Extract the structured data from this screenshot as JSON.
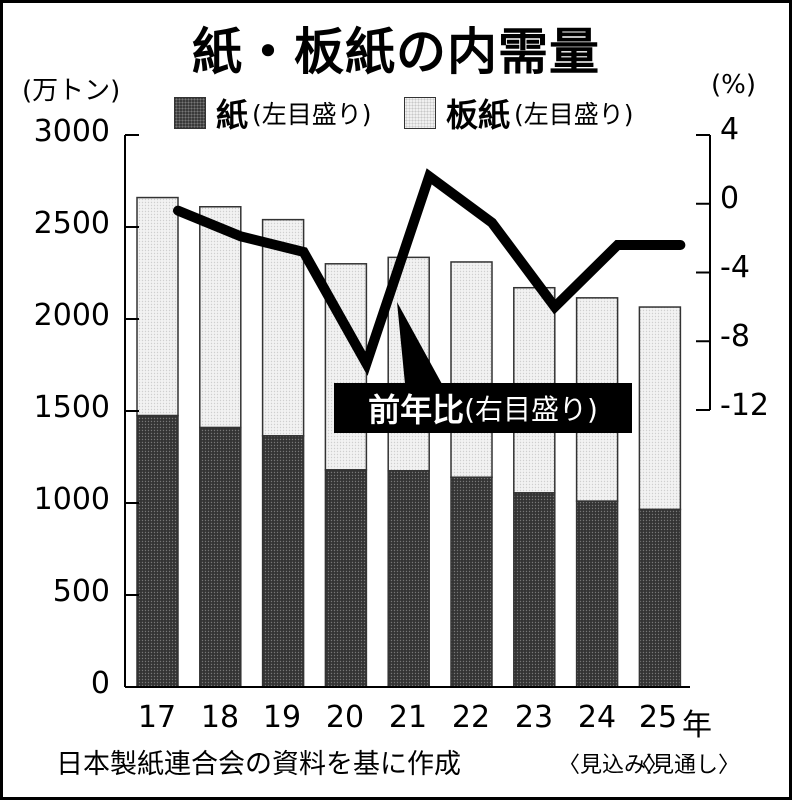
{
  "title": "紙・板紙の内需量",
  "unit_left": "(万トン)",
  "unit_right": "(%)",
  "legend": [
    {
      "name": "紙",
      "note": "(左目盛り)",
      "swatch": "dark-dotted"
    },
    {
      "name": "板紙",
      "note": "(左目盛り)",
      "swatch": "light-dotted"
    }
  ],
  "callout": {
    "main": "前年比",
    "note": "(右目盛り)"
  },
  "x_unit": "年",
  "x_notes": {
    "24": "〈見込み〉",
    "25": "〈見通し〉"
  },
  "source": "日本製紙連合会の資料を基に作成",
  "left_ticks": [
    "3000",
    "2500",
    "2000",
    "1500",
    "1000",
    "500",
    "0"
  ],
  "right_ticks": [
    "4",
    "0",
    "-4",
    "-8",
    "-12"
  ],
  "colors": {
    "paper": "#3a3a3a",
    "paperboard": "#f0f0f0",
    "line": "#000000",
    "callout_bg": "#000000"
  },
  "chart_data": {
    "type": "bar+line",
    "title": "紙・板紙の内需量",
    "categories": [
      "17",
      "18",
      "19",
      "20",
      "21",
      "22",
      "23",
      "24",
      "25"
    ],
    "xlabel": "年",
    "ylabel": "万トン",
    "ylim": [
      0,
      3000
    ],
    "y2label": "%",
    "y2lim": [
      -12,
      4
    ],
    "stacked": true,
    "series": [
      {
        "name": "紙",
        "axis": "left",
        "type": "bar",
        "values": [
          1475,
          1410,
          1365,
          1180,
          1175,
          1140,
          1055,
          1010,
          965
        ]
      },
      {
        "name": "板紙",
        "axis": "left",
        "type": "bar",
        "values": [
          1185,
          1200,
          1175,
          1120,
          1160,
          1170,
          1115,
          1105,
          1100
        ]
      },
      {
        "name": "前年比",
        "axis": "right",
        "type": "line",
        "values": [
          -0.4,
          -1.9,
          -2.8,
          -9.3,
          1.6,
          -1.1,
          -6.0,
          -2.4,
          -2.4
        ]
      }
    ],
    "totals": [
      2660,
      2610,
      2540,
      2300,
      2335,
      2310,
      2170,
      2115,
      2065
    ],
    "legend_position": "top",
    "grid": false,
    "annotations": [
      "前年比(右目盛り)",
      "24年〈見込み〉",
      "25年〈見通し〉",
      "日本製紙連合会の資料を基に作成"
    ]
  }
}
